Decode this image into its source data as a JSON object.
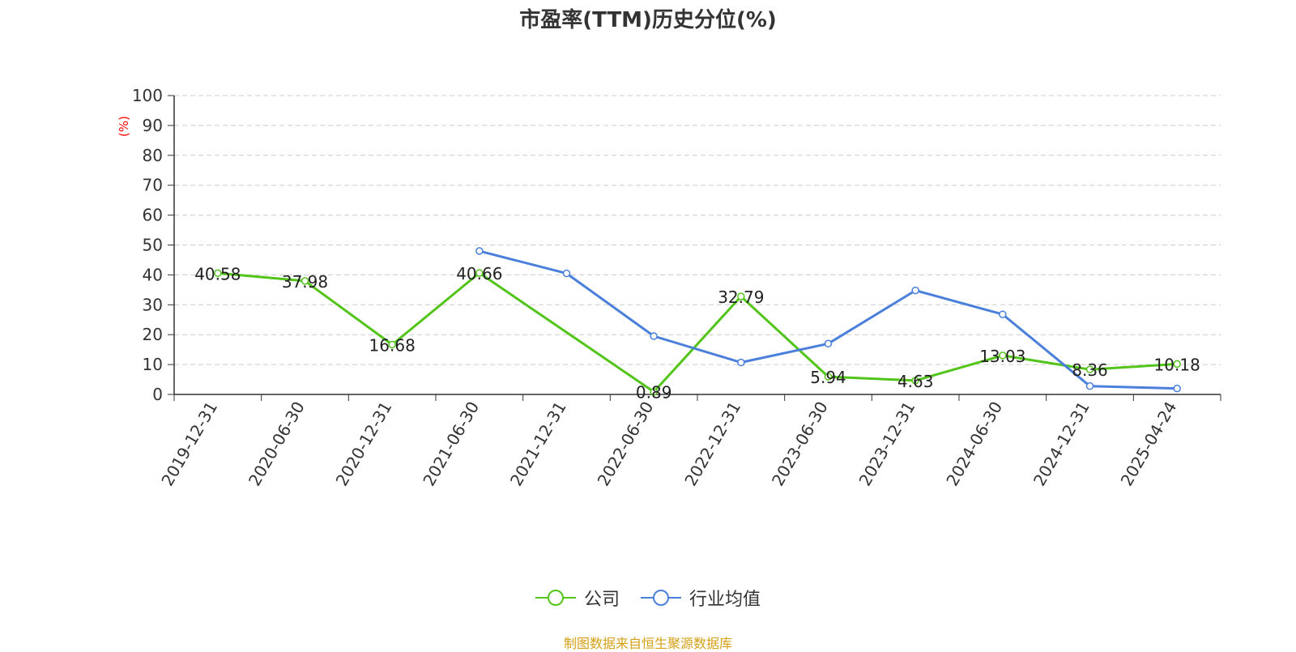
{
  "chart_data": {
    "type": "line",
    "title": "市盈率(TTM)历史分位(%)",
    "ylabel": "(%)",
    "ylim": [
      0,
      100
    ],
    "yticks": [
      0,
      10,
      20,
      30,
      40,
      50,
      60,
      70,
      80,
      90,
      100
    ],
    "grid": true,
    "legend_position": "bottom",
    "categories": [
      "2019-12-31",
      "2020-06-30",
      "2020-12-31",
      "2021-06-30",
      "2021-12-31",
      "2022-06-30",
      "2022-12-31",
      "2023-06-30",
      "2023-12-31",
      "2024-06-30",
      "2024-12-31",
      "2025-04-24"
    ],
    "series": [
      {
        "name": "公司",
        "color": "#52c41a",
        "values": [
          40.58,
          37.98,
          16.68,
          40.66,
          null,
          0.89,
          32.79,
          5.94,
          4.63,
          13.03,
          8.36,
          10.18
        ],
        "labels": [
          "40.58",
          "37.98",
          "16.68",
          "40.66",
          "",
          "0.89",
          "32.79",
          "5.94",
          "4.63",
          "13.03",
          "8.36",
          "10.18"
        ]
      },
      {
        "name": "行业均值",
        "color": "#4a7fdb",
        "values": [
          null,
          null,
          null,
          48,
          40.5,
          19.5,
          10.7,
          17,
          34.8,
          26.8,
          2.8,
          2
        ]
      }
    ],
    "source": "制图数据来自恒生聚源数据库"
  }
}
